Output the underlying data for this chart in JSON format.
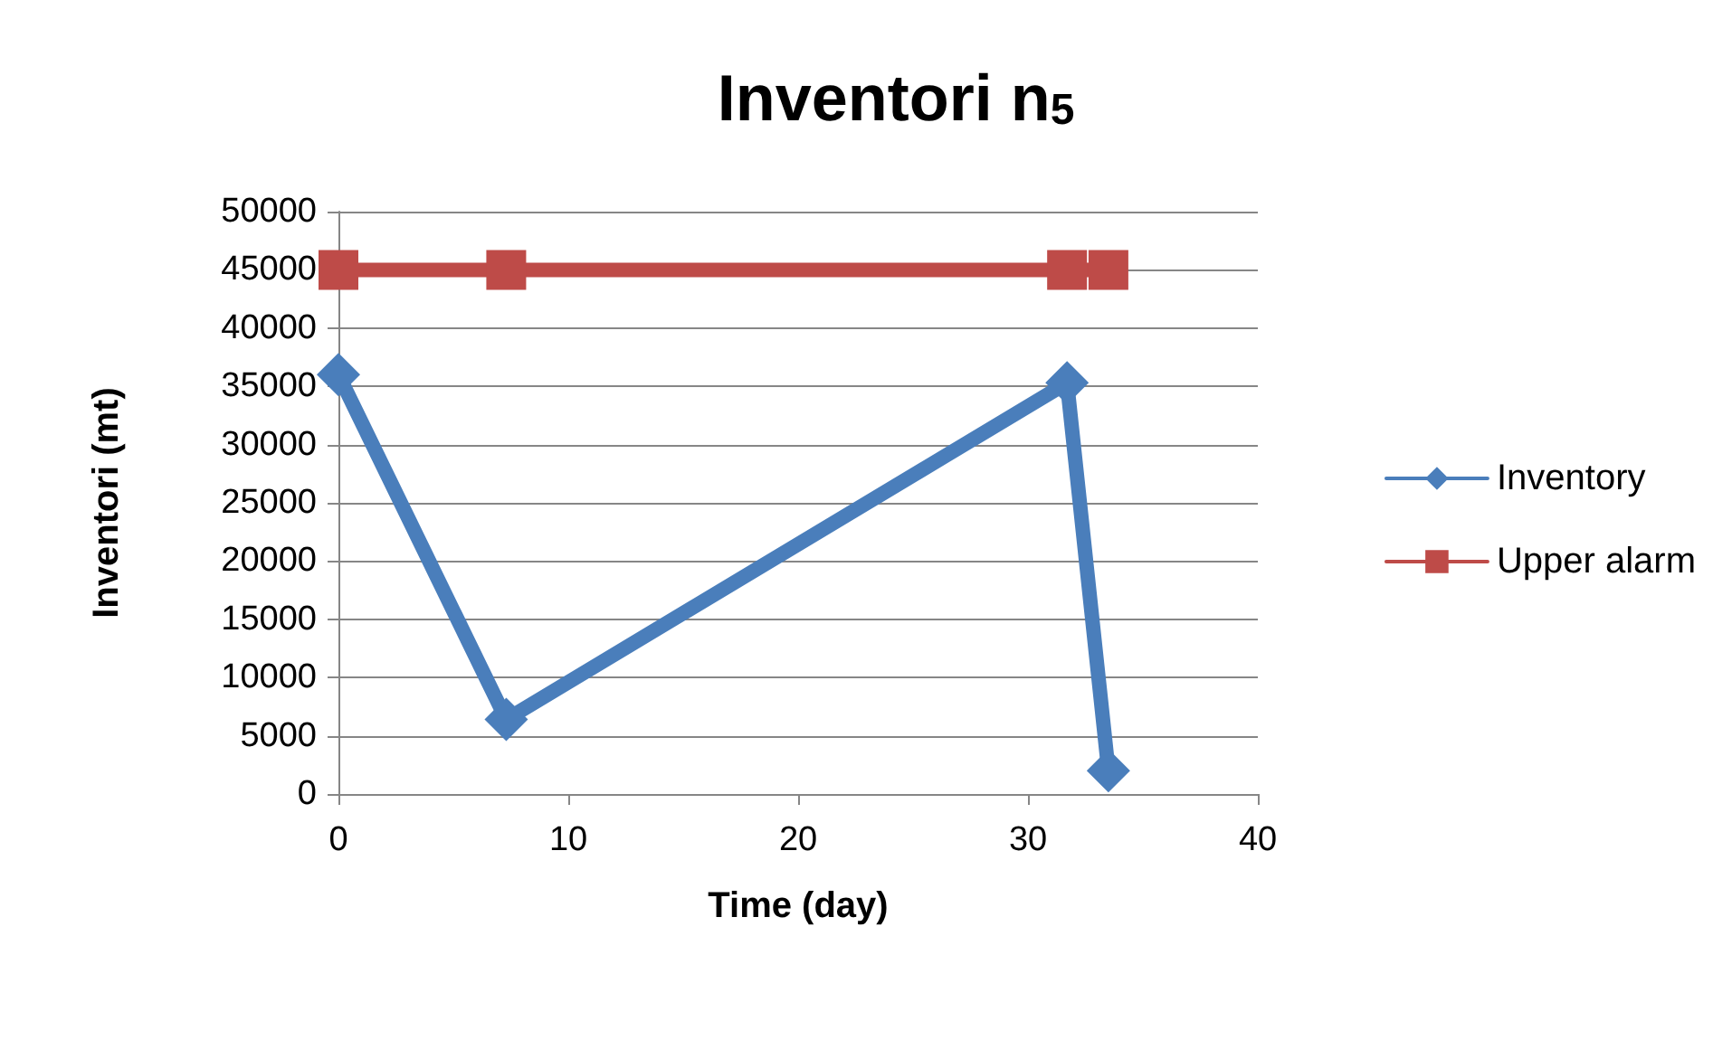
{
  "chart_data": {
    "type": "line",
    "title": "Inventori n$_{5}$",
    "xlabel": "Time (day)",
    "ylabel": "Inventori (mt)",
    "series": [
      {
        "name": "Inventory",
        "color": "#4a7ebb",
        "marker": "diamond",
        "x": [
          0,
          7.3,
          31.7,
          33.5
        ],
        "values": [
          36000,
          6400,
          35300,
          2000
        ]
      },
      {
        "name": "Upper alarm",
        "color": "#be4b48",
        "marker": "square",
        "x": [
          0,
          7.3,
          31.7,
          33.5
        ],
        "values": [
          45000,
          45000,
          45000,
          45000
        ]
      }
    ],
    "xlim": [
      0,
      40
    ],
    "xticks": [
      0,
      10,
      20,
      30,
      40
    ],
    "ylim": [
      0,
      50000
    ],
    "yticks": [
      0,
      5000,
      10000,
      15000,
      20000,
      25000,
      30000,
      35000,
      40000,
      45000,
      50000
    ],
    "grid": "y",
    "legend": "right",
    "line_style": "solid"
  }
}
